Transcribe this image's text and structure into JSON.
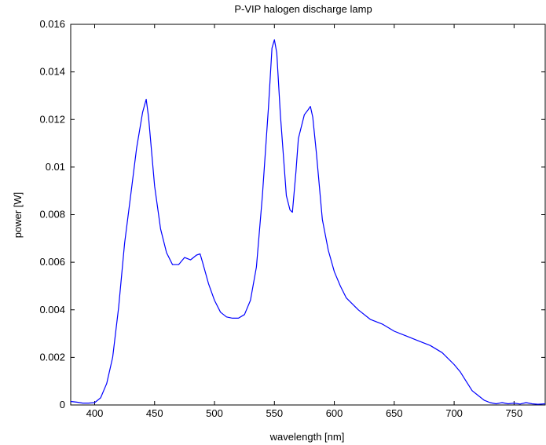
{
  "chart_data": {
    "type": "line",
    "title": "P-VIP halogen discharge lamp",
    "xlabel": "wavelength [nm]",
    "ylabel": "power [W]",
    "xlim": [
      380,
      776
    ],
    "ylim": [
      0,
      0.016
    ],
    "grid": false,
    "x_ticks": [
      400,
      450,
      500,
      550,
      600,
      650,
      700,
      750
    ],
    "x_tick_labels": [
      "400",
      "450",
      "500",
      "550",
      "600",
      "650",
      "700",
      "750"
    ],
    "y_ticks": [
      0,
      0.002,
      0.004,
      0.006,
      0.008,
      0.01,
      0.012,
      0.014,
      0.016
    ],
    "y_tick_labels": [
      "0",
      "0.002",
      "0.004",
      "0.006",
      "0.008",
      "0.01",
      "0.012",
      "0.014",
      "0.016"
    ],
    "series": [
      {
        "color": "#0000ff",
        "x": [
          380,
          385,
          390,
          395,
          400,
          405,
          410,
          415,
          420,
          425,
          430,
          435,
          440,
          443,
          445,
          450,
          455,
          460,
          465,
          470,
          475,
          480,
          485,
          488,
          490,
          495,
          500,
          505,
          510,
          515,
          520,
          525,
          530,
          535,
          540,
          545,
          548,
          550,
          552,
          555,
          560,
          563,
          565,
          568,
          570,
          575,
          578,
          580,
          582,
          585,
          590,
          595,
          600,
          605,
          610,
          620,
          630,
          640,
          650,
          660,
          670,
          680,
          690,
          700,
          705,
          710,
          715,
          720,
          725,
          730,
          735,
          740,
          745,
          750,
          755,
          760,
          765,
          770,
          776
        ],
        "y": [
          0.00015,
          0.00012,
          8e-05,
          8e-05,
          0.0001,
          0.0003,
          0.0009,
          0.002,
          0.0041,
          0.0068,
          0.0088,
          0.0108,
          0.0123,
          0.01285,
          0.0121,
          0.0092,
          0.0074,
          0.0064,
          0.0059,
          0.0059,
          0.0062,
          0.0061,
          0.0063,
          0.00635,
          0.006,
          0.0051,
          0.0044,
          0.0039,
          0.0037,
          0.00365,
          0.00365,
          0.0038,
          0.0044,
          0.0058,
          0.0088,
          0.0125,
          0.015,
          0.01535,
          0.0148,
          0.0122,
          0.0088,
          0.0082,
          0.0081,
          0.0098,
          0.0112,
          0.0122,
          0.0124,
          0.01255,
          0.0121,
          0.0106,
          0.0078,
          0.0065,
          0.0056,
          0.005,
          0.0045,
          0.004,
          0.0036,
          0.0034,
          0.0031,
          0.0029,
          0.0027,
          0.0025,
          0.0022,
          0.0017,
          0.0014,
          0.001,
          0.0006,
          0.0004,
          0.0002,
          0.0001,
          5e-05,
          0.0001,
          5e-05,
          8e-05,
          4e-05,
          0.0001,
          5e-05,
          3e-05,
          5e-05
        ]
      }
    ]
  }
}
